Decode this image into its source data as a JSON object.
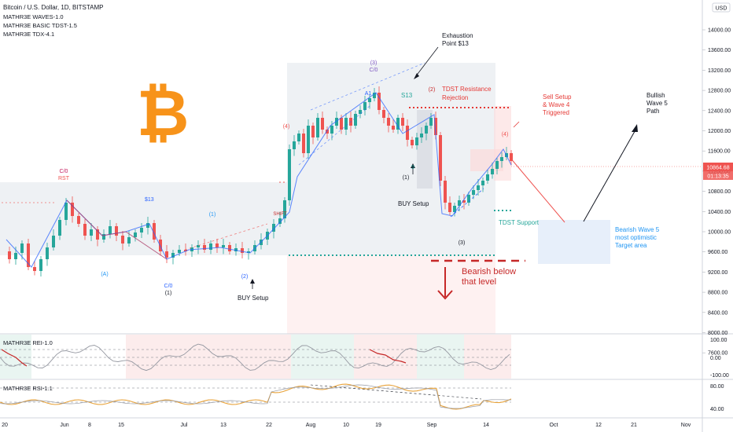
{
  "header": {
    "symbol_title": "Bitcoin / U.S. Dollar, 1D, BITSTAMP",
    "indicators": [
      "MATHR3E WAVES-1.0",
      "MATHR3E BASIC TDST-1.5",
      "MATHR3E TDX-4.1"
    ],
    "currency": "USD"
  },
  "price_axis": {
    "ticks": [
      "14000.00",
      "13600.00",
      "13200.00",
      "12800.00",
      "12400.00",
      "12000.00",
      "11600.00",
      "11200.00",
      "10800.00",
      "10400.00",
      "10000.00",
      "9600.00",
      "9200.00",
      "8800.00",
      "8400.00",
      "8000.00",
      "7600.00"
    ],
    "last_price": "10864.68",
    "countdown": "01:13:35"
  },
  "time_axis": {
    "labels": [
      "20",
      "Jun",
      "8",
      "15",
      "Jul",
      "13",
      "22",
      "Aug",
      "10",
      "19",
      "Sep",
      "14",
      "Oct",
      "12",
      "21",
      "Nov"
    ]
  },
  "annotations": {
    "exhaustion": [
      "Exhaustion",
      "Point $13"
    ],
    "tdst_resistance": [
      "TDST Resistance",
      "Rejection"
    ],
    "sell_setup": [
      "Sell Setup",
      "& Wave 4",
      "Triggered"
    ],
    "bullish": [
      "Bullish",
      "Wave 5",
      "Path"
    ],
    "bearish_target": [
      "Bearish Wave 5",
      "most optimistic",
      "Target area"
    ],
    "tdst_support": "TDST Support",
    "bearish_below": [
      "Bearish below",
      "that level"
    ],
    "buy_setup_1": "BUY Setup",
    "buy_setup_2": "BUY Setup",
    "s13_a": "$13",
    "s13_b": "$13",
    "s13_c": "S13"
  },
  "wave_labels": {
    "three_top": "(3)",
    "c0_top": "C/0",
    "one_blue": "(1)",
    "c0_left": "C/0",
    "rst": "RST",
    "a_low": "(A)",
    "c0_low": "C/0",
    "one_low": "(1)",
    "two_low": "(2)",
    "two_mid": "(2)",
    "four_r": "(4)",
    "three_low": "(3)",
    "one_mid": "(1)",
    "a1": "A1",
    "shift": "SHIFT",
    "nine": "9",
    "four_right": "(4)"
  },
  "oscillators": [
    {
      "name": "MATHR3E REI-1.0",
      "ticks": [
        "100.00",
        "0.00",
        "-100.00"
      ]
    },
    {
      "name": "MATHR3E RSI-1.1",
      "ticks": [
        "80.00",
        "40.00"
      ]
    }
  ],
  "colors": {
    "up": "#26a69a",
    "down": "#ef5350",
    "wave_blue": "#2962ff",
    "red_annot": "#e53935",
    "dark_red": "#c62828",
    "green_annot": "#26a69a",
    "bitcoin_orange": "#f7931a",
    "rsi_orange": "#e8a33b"
  }
}
